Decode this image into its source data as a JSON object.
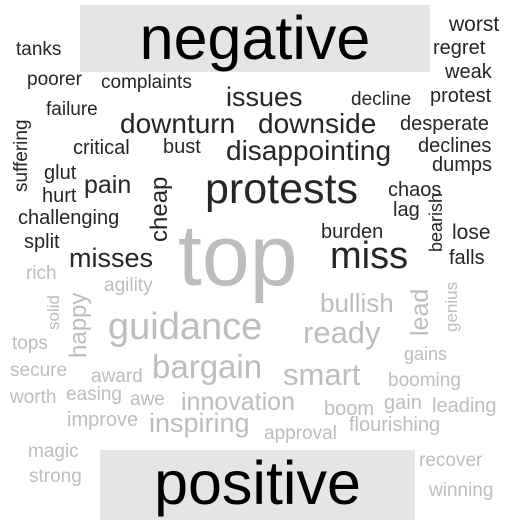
{
  "headers": {
    "negative": "negative",
    "positive": "positive"
  },
  "colors": {
    "negative_words": "#262626",
    "positive_words": "#bdbdbd",
    "header_bg": "#e5e5e5",
    "header_text": "#000000"
  },
  "negative_words": [
    "worst",
    "tanks",
    "regret",
    "weak",
    "poorer",
    "complaints",
    "protest",
    "issues",
    "decline",
    "failure",
    "suffering",
    "downturn",
    "downside",
    "desperate",
    "critical",
    "bust",
    "declines",
    "disappointing",
    "glut",
    "dumps",
    "pain",
    "cheap",
    "protests",
    "hurt",
    "chaos",
    "challenging",
    "lag",
    "bearish",
    "split",
    "burden",
    "lose",
    "miss",
    "misses",
    "falls"
  ],
  "positive_words": [
    "top",
    "rich",
    "agility",
    "solid",
    "happy",
    "lead",
    "genius",
    "bullish",
    "guidance",
    "ready",
    "tops",
    "gains",
    "secure",
    "bargain",
    "award",
    "smart",
    "booming",
    "worth",
    "easing",
    "awe",
    "innovation",
    "boom",
    "gain",
    "leading",
    "improve",
    "inspiring",
    "approval",
    "flourishing",
    "magic",
    "recover",
    "strong",
    "winning"
  ]
}
